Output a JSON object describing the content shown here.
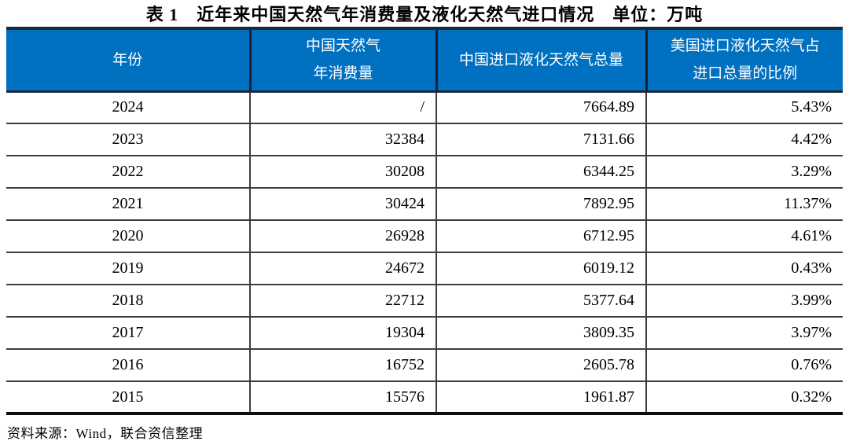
{
  "page": {
    "title": "表 1　近年来中国天然气年消费量及液化天然气进口情况　单位：万吨",
    "source_note": "资料来源：Wind，联合资信整理"
  },
  "colors": {
    "header_bg": "#0070C0",
    "header_text": "#FFFFFF",
    "header_border": "#1B2A3A",
    "grid_line": "#3D3D3D",
    "table_bottom_border": "#0D0D0D"
  },
  "table": {
    "columns": [
      {
        "line1": "年份",
        "line2": ""
      },
      {
        "line1": "中国天然气",
        "line2": "年消费量"
      },
      {
        "line1": "中国进口液化天然气总量",
        "line2": ""
      },
      {
        "line1": "美国进口液化天然气占",
        "line2": "进口总量的比例"
      }
    ],
    "rows": [
      {
        "year": "2024",
        "consumption": "/",
        "lng_import_total": "7664.89",
        "us_share": "5.43%"
      },
      {
        "year": "2023",
        "consumption": "32384",
        "lng_import_total": "7131.66",
        "us_share": "4.42%"
      },
      {
        "year": "2022",
        "consumption": "30208",
        "lng_import_total": "6344.25",
        "us_share": "3.29%"
      },
      {
        "year": "2021",
        "consumption": "30424",
        "lng_import_total": "7892.95",
        "us_share": "11.37%"
      },
      {
        "year": "2020",
        "consumption": "26928",
        "lng_import_total": "6712.95",
        "us_share": "4.61%"
      },
      {
        "year": "2019",
        "consumption": "24672",
        "lng_import_total": "6019.12",
        "us_share": "0.43%"
      },
      {
        "year": "2018",
        "consumption": "22712",
        "lng_import_total": "5377.64",
        "us_share": "3.99%"
      },
      {
        "year": "2017",
        "consumption": "19304",
        "lng_import_total": "3809.35",
        "us_share": "3.97%"
      },
      {
        "year": "2016",
        "consumption": "16752",
        "lng_import_total": "2605.78",
        "us_share": "0.76%"
      },
      {
        "year": "2015",
        "consumption": "15576",
        "lng_import_total": "1961.87",
        "us_share": "0.32%"
      }
    ]
  }
}
